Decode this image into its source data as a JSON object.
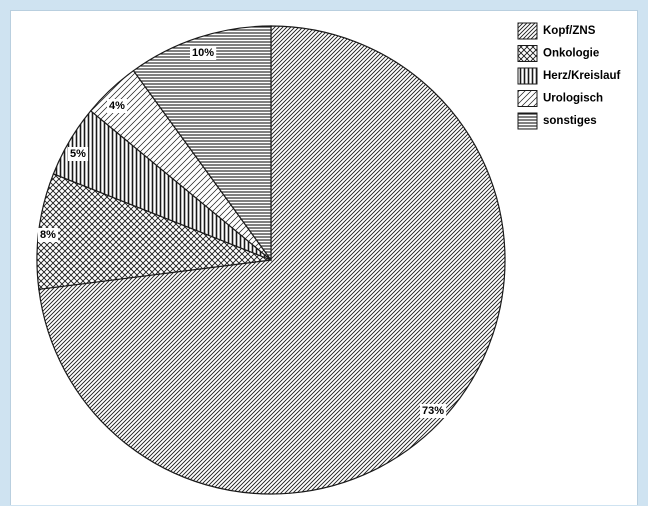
{
  "chart_data": {
    "type": "pie",
    "title": "",
    "start_angle_deg": 0,
    "direction": "clockwise",
    "slices": [
      {
        "label": "Kopf/ZNS",
        "value": 73,
        "value_label": "73%",
        "pattern": "diag-fine"
      },
      {
        "label": "Onkologie",
        "value": 8,
        "value_label": "8%",
        "pattern": "crosshatch"
      },
      {
        "label": "Herz/Kreislauf",
        "value": 5,
        "value_label": "5%",
        "pattern": "vertical"
      },
      {
        "label": "Urologisch",
        "value": 4,
        "value_label": "4%",
        "pattern": "diag-wide"
      },
      {
        "label": "sonstiges",
        "value": 10,
        "value_label": "10%",
        "pattern": "horizontal"
      }
    ],
    "legend": {
      "position": "top-right",
      "entries": [
        "Kopf/ZNS",
        "Onkologie",
        "Herz/Kreislauf",
        "Urologisch",
        "sonstiges"
      ]
    }
  },
  "colors": {
    "border": "#1a1a1a",
    "pattern_ink": "#1a1a1a",
    "slice_fill": "#ffffff",
    "frame_background": "#cfe3f1",
    "plot_background": "#ffffff"
  }
}
